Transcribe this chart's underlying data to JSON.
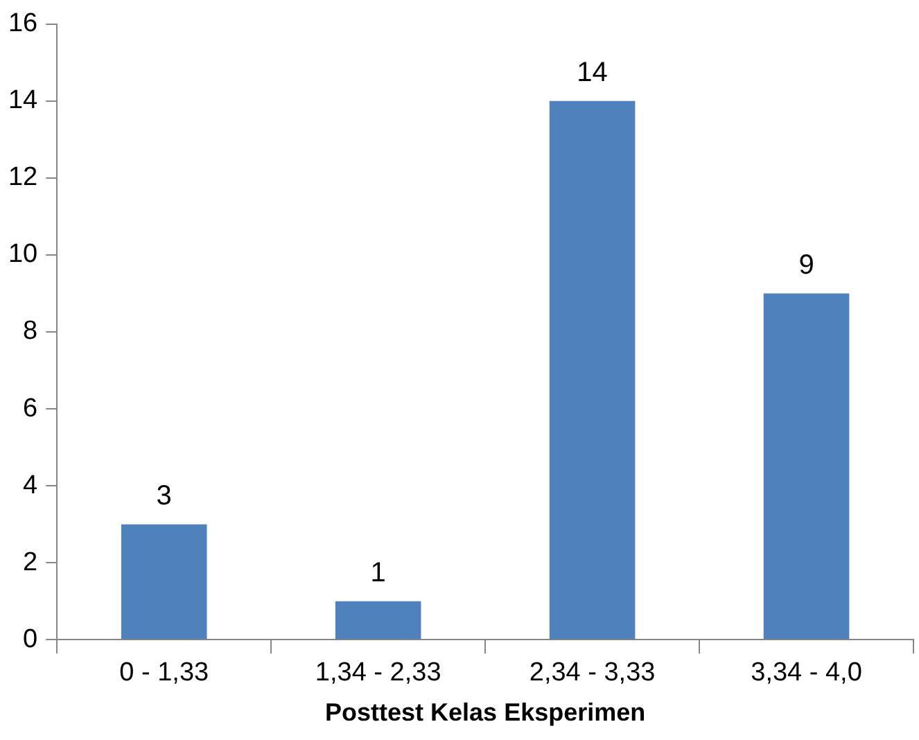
{
  "chart_data": {
    "type": "bar",
    "xlabel": "Posttest Kelas Eksperimen",
    "categories": [
      "0 - 1,33",
      "1,34 - 2,33",
      "2,34 - 3,33",
      "3,34 - 4,0"
    ],
    "values": [
      3,
      1,
      14,
      9
    ],
    "color": "#4f81bd",
    "ylim": [
      0,
      16
    ],
    "yticks": [
      0,
      2,
      4,
      6,
      8,
      10,
      12,
      14,
      16
    ],
    "grid": false,
    "legend": false,
    "data_labels": true
  }
}
